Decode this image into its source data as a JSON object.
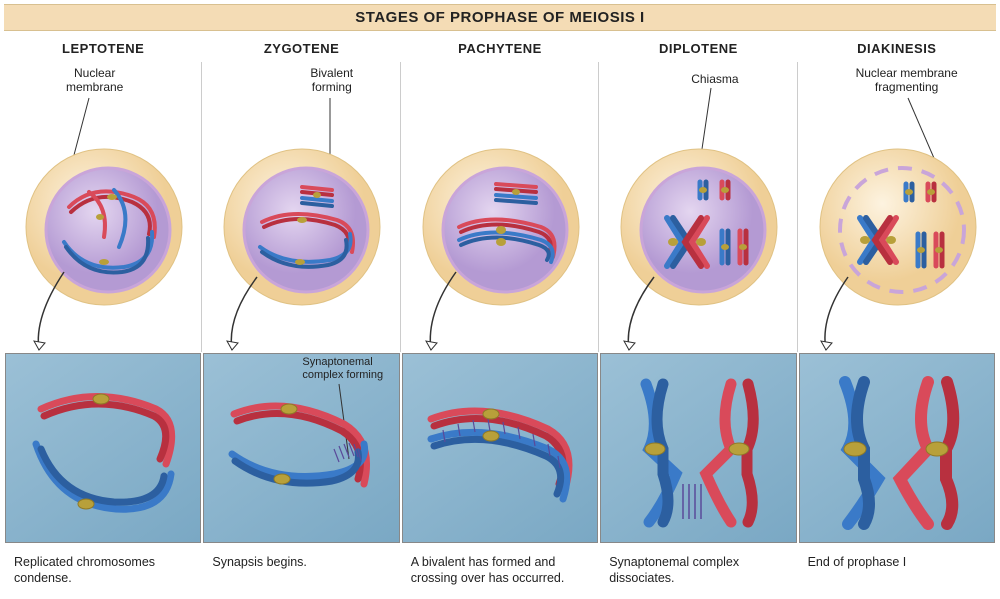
{
  "title": "STAGES OF PROPHASE OF MEIOSIS I",
  "colors": {
    "title_bg": "#f4dcb5",
    "cytoplasm_light": "#fbe7c8",
    "cytoplasm_dark": "#f0d29a",
    "nucleus_light": "#d9c8ea",
    "nucleus_dark": "#b79bd4",
    "membrane": "#c9a5d9",
    "chrom_red": "#d94a5a",
    "chrom_red_dark": "#b8303f",
    "chrom_blue": "#3a7ac8",
    "chrom_blue_dark": "#2c5fa0",
    "centromere": "#b8a03a",
    "detail_bg_light": "#9bc0d6",
    "detail_bg_dark": "#7aa8c4",
    "arrow": "#333333",
    "line_stroke": "#333333"
  },
  "stages": [
    {
      "name": "LEPTOTENE",
      "callout": "Nuclear\nmembrane",
      "caption": "Replicated chromosomes condense.",
      "membrane_intact": true,
      "nucleus_visible": true
    },
    {
      "name": "ZYGOTENE",
      "callout": "Bivalent\nforming",
      "caption": "Synapsis begins.",
      "detail_label": "Synaptonemal\ncomplex forming",
      "membrane_intact": true,
      "nucleus_visible": true
    },
    {
      "name": "PACHYTENE",
      "callout": "",
      "caption": "A bivalent has formed and crossing over has occurred.",
      "membrane_intact": true,
      "nucleus_visible": true
    },
    {
      "name": "DIPLOTENE",
      "callout": "Chiasma",
      "caption": "Synaptonemal complex dissociates.",
      "membrane_intact": true,
      "nucleus_visible": true
    },
    {
      "name": "DIAKINESIS",
      "callout": "Nuclear membrane\nfragmenting",
      "caption": "End of prophase I",
      "membrane_intact": false,
      "nucleus_visible": false
    }
  ],
  "line_width": {
    "chrom": 5,
    "chrom_detail": 8,
    "leader": 1
  },
  "font_sizes": {
    "title": 15,
    "stage_name": 13,
    "callout": 12,
    "caption": 12.5,
    "detail_label": 11
  }
}
